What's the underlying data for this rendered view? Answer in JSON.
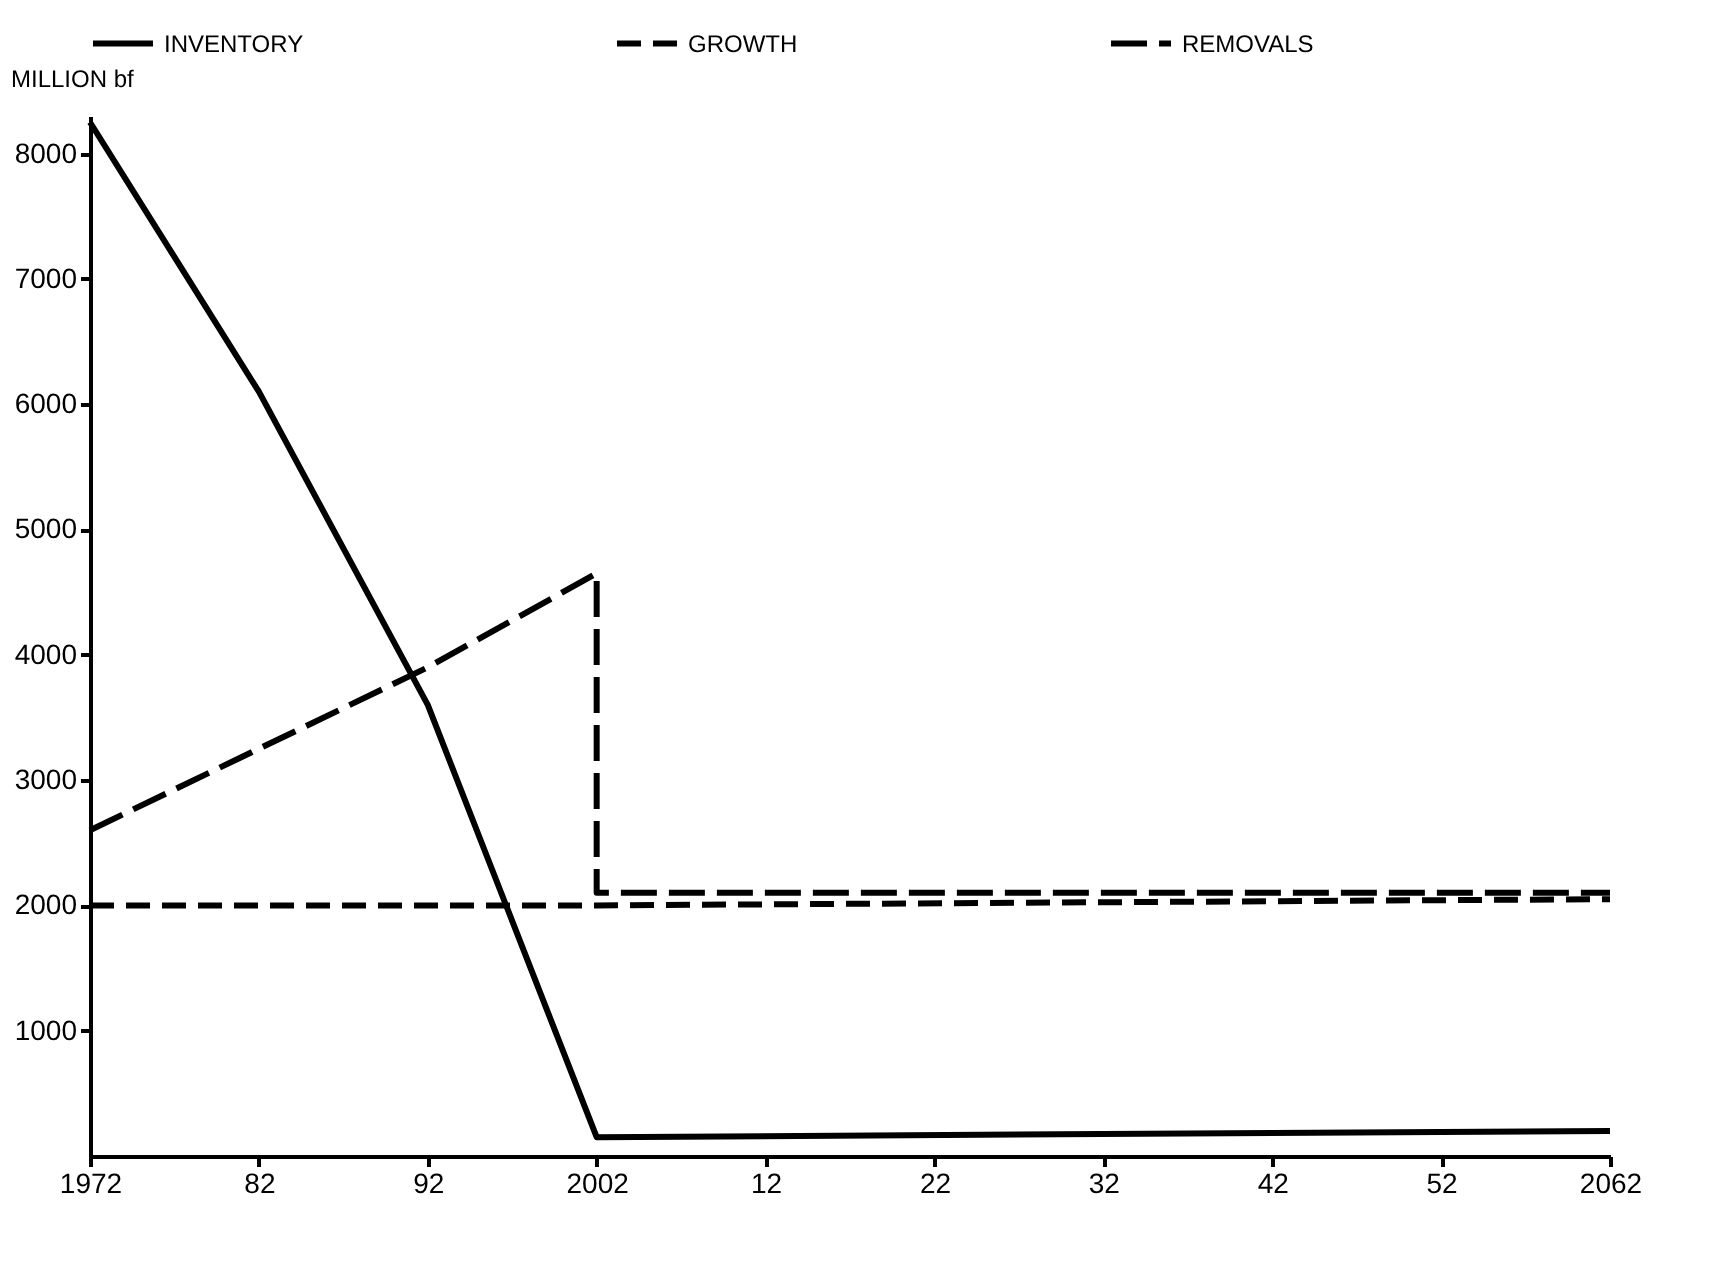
{
  "chart_data": {
    "type": "line",
    "ylabel": "MILLION bf",
    "xlim": [
      1972,
      2062
    ],
    "xticks": [
      1972,
      {
        "value": 1982,
        "label": "82"
      },
      {
        "value": 1992,
        "label": "92"
      },
      2002,
      {
        "value": 2012,
        "label": "12"
      },
      {
        "value": 2022,
        "label": "22"
      },
      {
        "value": 2032,
        "label": "32"
      },
      {
        "value": 2042,
        "label": "42"
      },
      {
        "value": 2052,
        "label": "52"
      },
      2062
    ],
    "ylim": [
      0,
      8300
    ],
    "yticks": [
      1000,
      2000,
      3000,
      4000,
      5000,
      6000,
      7000,
      8000
    ],
    "grid": false,
    "legend": "top",
    "marker": "none",
    "series": [
      {
        "name": "INVENTORY",
        "color": "#000000",
        "line_style": "solid",
        "x": [
          1972,
          1982,
          1992,
          2002,
          2062
        ],
        "values": [
          8250,
          6100,
          3600,
          150,
          200
        ]
      },
      {
        "name": "GROWTH",
        "color": "#000000",
        "line_style": "dashed",
        "x": [
          1972,
          2002,
          2062
        ],
        "values": [
          2000,
          2000,
          2050
        ]
      },
      {
        "name": "REMOVALS",
        "color": "#000000",
        "line_style": "dashed",
        "x": [
          1972,
          1992,
          2002,
          2002,
          2062
        ],
        "values": [
          2600,
          3900,
          4650,
          2100,
          2100
        ]
      }
    ]
  }
}
